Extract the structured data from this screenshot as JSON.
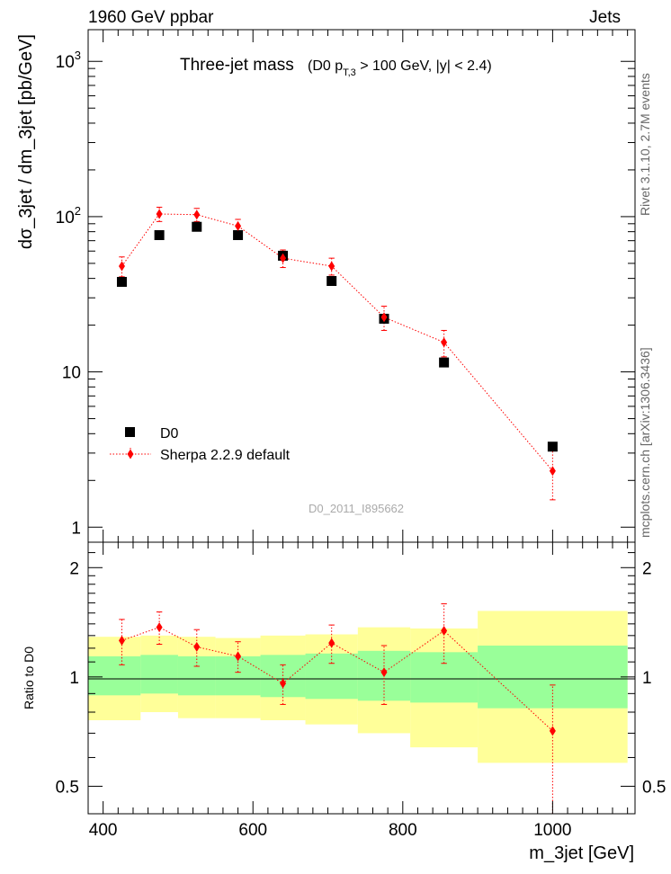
{
  "header": {
    "left": "1960 GeV ppbar",
    "right": "Jets"
  },
  "side_labels": {
    "rivet": "Rivet 3.1.10,  2.7M events",
    "mcplots": "mcplots.cern.ch [arXiv:1306.3436]"
  },
  "watermark": "D0_2011_I895662",
  "chart_data": [
    {
      "type": "scatter",
      "title": "Three-jet mass",
      "subtitle": "(D0 p",
      "subtitle_sub": "T,3",
      "subtitle_rest": " > 100 GeV, |y| < 2.4)",
      "ylabel": "dσ_3jet / dm_3jet [pb/GeV]",
      "yscale": "log",
      "ylim": [
        0.8,
        1600
      ],
      "xlim": [
        380,
        1110
      ],
      "yticks": [
        {
          "value": 1,
          "label": "1"
        },
        {
          "value": 10,
          "label": "10"
        },
        {
          "value": 100,
          "label": "10",
          "exp": "2"
        },
        {
          "value": 1000,
          "label": "10",
          "exp": "3"
        }
      ],
      "legend": {
        "position": "bottom-left",
        "entries": [
          "D0",
          "Sherpa 2.2.9 default"
        ]
      },
      "series": [
        {
          "name": "D0",
          "color": "#000000",
          "marker": "square",
          "x": [
            425,
            475,
            525,
            580,
            640,
            705,
            775,
            855,
            1000
          ],
          "y": [
            38,
            76,
            86,
            76,
            56,
            38.5,
            22,
            11.5,
            3.3
          ]
        },
        {
          "name": "Sherpa 2.2.9 default",
          "color": "#ff0000",
          "marker": "diamond",
          "line": "dotted",
          "x": [
            425,
            475,
            525,
            580,
            640,
            705,
            775,
            855,
            1000
          ],
          "y": [
            48,
            104,
            103,
            87,
            54,
            48,
            22.5,
            15.5,
            2.3
          ],
          "y_err_low": [
            41,
            93,
            93,
            79,
            47,
            42,
            18.5,
            12.5,
            1.5
          ],
          "y_err_high": [
            55,
            115,
            113,
            96,
            61,
            54,
            26.5,
            18.5,
            3.1
          ]
        }
      ]
    },
    {
      "type": "scatter",
      "xlabel": "m_3jet [GeV]",
      "ylabel": "Ratio to D0",
      "yscale": "log",
      "ylim": [
        0.42,
        2.35
      ],
      "xlim": [
        380,
        1110
      ],
      "yticks": [
        {
          "value": 0.5,
          "label": "0.5"
        },
        {
          "value": 1,
          "label": "1"
        },
        {
          "value": 2,
          "label": "2"
        }
      ],
      "xticks": [
        400,
        600,
        800,
        1000
      ],
      "bands": [
        {
          "x0": 380,
          "x1": 450,
          "y_lo_outer": 0.76,
          "y_hi_outer": 1.29,
          "y_lo_inner": 0.89,
          "y_hi_inner": 1.14
        },
        {
          "x0": 450,
          "x1": 500,
          "y_lo_outer": 0.8,
          "y_hi_outer": 1.3,
          "y_lo_inner": 0.9,
          "y_hi_inner": 1.15
        },
        {
          "x0": 500,
          "x1": 550,
          "y_lo_outer": 0.77,
          "y_hi_outer": 1.29,
          "y_lo_inner": 0.89,
          "y_hi_inner": 1.14
        },
        {
          "x0": 550,
          "x1": 610,
          "y_lo_outer": 0.77,
          "y_hi_outer": 1.28,
          "y_lo_inner": 0.89,
          "y_hi_inner": 1.14
        },
        {
          "x0": 610,
          "x1": 670,
          "y_lo_outer": 0.76,
          "y_hi_outer": 1.3,
          "y_lo_inner": 0.88,
          "y_hi_inner": 1.15
        },
        {
          "x0": 670,
          "x1": 740,
          "y_lo_outer": 0.74,
          "y_hi_outer": 1.31,
          "y_lo_inner": 0.87,
          "y_hi_inner": 1.16
        },
        {
          "x0": 740,
          "x1": 810,
          "y_lo_outer": 0.7,
          "y_hi_outer": 1.37,
          "y_lo_inner": 0.86,
          "y_hi_inner": 1.18
        },
        {
          "x0": 810,
          "x1": 900,
          "y_lo_outer": 0.64,
          "y_hi_outer": 1.36,
          "y_lo_inner": 0.85,
          "y_hi_inner": 1.17
        },
        {
          "x0": 900,
          "x1": 1100,
          "y_lo_outer": 0.58,
          "y_hi_outer": 1.52,
          "y_lo_inner": 0.82,
          "y_hi_inner": 1.22
        }
      ],
      "series": [
        {
          "name": "Sherpa 2.2.9 default",
          "color": "#ff0000",
          "x": [
            425,
            475,
            525,
            580,
            640,
            705,
            775,
            855,
            1000
          ],
          "y": [
            1.26,
            1.37,
            1.21,
            1.14,
            0.96,
            1.24,
            1.03,
            1.34,
            0.71
          ],
          "y_err_low": [
            1.08,
            1.23,
            1.07,
            1.03,
            0.84,
            1.09,
            0.84,
            1.09,
            0.42
          ],
          "y_err_high": [
            1.44,
            1.51,
            1.35,
            1.25,
            1.08,
            1.39,
            1.22,
            1.59,
            0.95
          ]
        }
      ]
    }
  ]
}
